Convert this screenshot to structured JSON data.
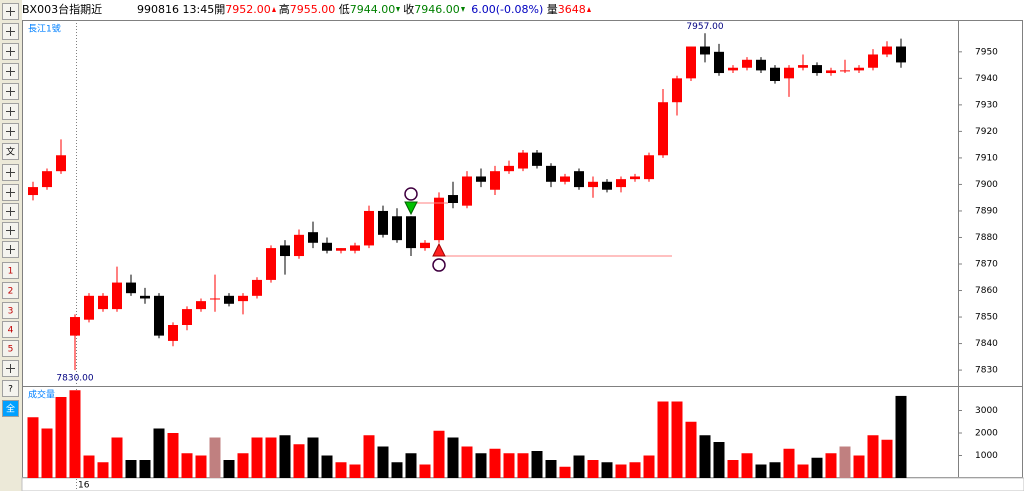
{
  "header": {
    "symbol": "BX003台指期近",
    "date": "990816",
    "time": "13:45",
    "open_label": "開",
    "open": "7952.00",
    "high_label": "高",
    "high": "7955.00",
    "low_label": "低",
    "low": "7944.00",
    "close_label": "收",
    "close": "7946.00",
    "change": "6.00(-0.08%)",
    "volume_label": "量",
    "volume": "3648"
  },
  "toolbar": [
    "文",
    "1",
    "2",
    "3",
    "4",
    "5",
    "?",
    "全"
  ],
  "chart_data": {
    "type": "candlestick",
    "price_panel_label": "長江1號",
    "volume_panel_label": "成交量",
    "categories": [
      null,
      null,
      null,
      "16",
      null,
      null,
      null,
      null,
      null,
      null,
      null,
      null,
      null,
      null,
      null,
      null,
      null,
      null,
      null,
      null,
      null,
      null,
      null,
      null,
      null,
      null,
      null,
      null,
      null,
      null,
      null,
      null,
      null,
      null,
      null,
      null,
      null,
      null,
      null,
      null,
      null,
      null,
      null,
      null,
      null,
      null,
      null,
      null,
      null,
      null,
      null,
      null,
      null,
      null,
      null,
      null,
      null,
      null,
      null,
      null,
      null,
      null,
      null
    ],
    "open": [
      7896,
      7899,
      7905,
      7843,
      7849,
      7853,
      7853,
      7863,
      7858,
      7858,
      7841,
      7847,
      7853,
      7857,
      7858,
      7856,
      7858,
      7864,
      7877,
      7873,
      7882,
      7878,
      7875,
      7875,
      7877,
      7890,
      7888,
      7888,
      7876,
      7879,
      7896,
      7892,
      7903,
      7898,
      7905,
      7906,
      7912,
      7907,
      7901,
      7905,
      7899,
      7901,
      7899,
      7902,
      7902,
      7911,
      7931,
      7940,
      7952,
      7950,
      7943,
      7944,
      7947,
      7944,
      7940,
      7944,
      7945,
      7942,
      7943,
      7943,
      7944,
      7949,
      7952
    ],
    "high": [
      7901,
      7906,
      7917,
      7851,
      7859,
      7859,
      7869,
      7866,
      7861,
      7859,
      7848,
      7854,
      7857,
      7866,
      7859,
      7859,
      7865,
      7877,
      7879,
      7883,
      7886,
      7880,
      7876,
      7878,
      7892,
      7892,
      7891,
      7888,
      7879,
      7897,
      7901,
      7905,
      7906,
      7907,
      7909,
      7913,
      7913,
      7908,
      7904,
      7906,
      7903,
      7902,
      7903,
      7904,
      7912,
      7936,
      7941,
      7952,
      7957,
      7953,
      7945,
      7948,
      7948,
      7945,
      7945,
      7949,
      7946,
      7944,
      7947,
      7945,
      7951,
      7954,
      7955
    ],
    "low": [
      7894,
      7898,
      7904,
      7830,
      7848,
      7852,
      7852,
      7858,
      7855,
      7842,
      7839,
      7845,
      7852,
      7852,
      7854,
      7851,
      7857,
      7863,
      7866,
      7872,
      7876,
      7874,
      7874,
      7874,
      7876,
      7880,
      7878,
      7873,
      7875,
      7878,
      7891,
      7891,
      7899,
      7896,
      7904,
      7905,
      7906,
      7899,
      7900,
      7898,
      7895,
      7897,
      7897,
      7901,
      7901,
      7910,
      7926,
      7939,
      7946,
      7941,
      7942,
      7943,
      7942,
      7938,
      7933,
      7943,
      7941,
      7941,
      7942,
      7942,
      7943,
      7948,
      7944
    ],
    "close": [
      7899,
      7905,
      7911,
      7850,
      7858,
      7858,
      7863,
      7859,
      7857,
      7843,
      7847,
      7853,
      7856,
      7857,
      7855,
      7858,
      7864,
      7876,
      7873,
      7881,
      7878,
      7875,
      7876,
      7877,
      7890,
      7881,
      7879,
      7876,
      7878,
      7895,
      7893,
      7903,
      7901,
      7905,
      7907,
      7912,
      7907,
      7901,
      7903,
      7899,
      7901,
      7898,
      7902,
      7903,
      7911,
      7931,
      7940,
      7952,
      7949,
      7942,
      7944,
      7947,
      7943,
      7939,
      7944,
      7945,
      7942,
      7943,
      7943,
      7944,
      7949,
      7952,
      7946
    ],
    "volume": [
      2700,
      2200,
      3600,
      3900,
      1000,
      700,
      1800,
      800,
      800,
      2200,
      2000,
      1100,
      1000,
      1800,
      800,
      1100,
      1800,
      1800,
      1900,
      1500,
      1800,
      1000,
      700,
      600,
      1900,
      1400,
      700,
      1100,
      600,
      2100,
      1800,
      1400,
      1100,
      1300,
      1100,
      1100,
      1200,
      800,
      500,
      1000,
      800,
      700,
      600,
      700,
      1000,
      3400,
      3400,
      2500,
      1900,
      1600,
      800,
      1100,
      600,
      700,
      1300,
      600,
      900,
      1100,
      1400,
      1000,
      1900,
      1700,
      3648
    ],
    "up_color": "#ff0000",
    "down_color": "#000000",
    "flat_color": "#c08080",
    "ylim": [
      7824,
      7962
    ],
    "yticks": [
      7830,
      7840,
      7850,
      7860,
      7870,
      7880,
      7890,
      7900,
      7910,
      7920,
      7930,
      7940,
      7950
    ],
    "y2lim": [
      0,
      4000
    ],
    "y2ticks": [
      1000,
      2000,
      3000
    ],
    "annotations": [
      {
        "label": "7957.00",
        "index": 48,
        "value": 7957
      },
      {
        "label": "7830.00",
        "index": 3,
        "value": 7830
      }
    ],
    "signals": [
      {
        "side": "sell",
        "index": 27,
        "price": 7893,
        "end_index": 30
      },
      {
        "side": "buy",
        "index": 29,
        "price": 7873,
        "end_index": 46
      }
    ]
  }
}
